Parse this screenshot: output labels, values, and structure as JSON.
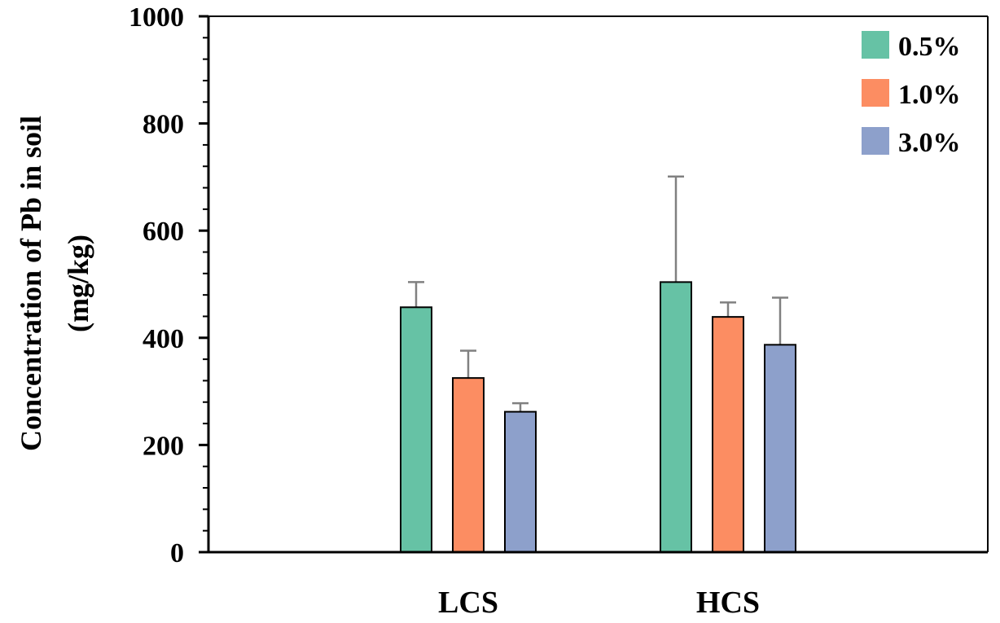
{
  "chart_data": {
    "type": "bar",
    "title": "",
    "xlabel": "",
    "ylabel": [
      "Concentration of Pb in soil",
      "(mg/kg)"
    ],
    "ylim": [
      0,
      1000
    ],
    "yticks": [
      "0",
      "200",
      "400",
      "600",
      "800",
      "1000"
    ],
    "ytick_values": [
      0,
      200,
      400,
      600,
      800,
      1000
    ],
    "minor_tick_step": 40,
    "categories": [
      "LCS",
      "HCS"
    ],
    "series": [
      {
        "name": "0.5%",
        "color": "#66c2a5",
        "values": [
          457,
          504
        ],
        "errors": [
          47,
          197
        ]
      },
      {
        "name": "1.0%",
        "color": "#fc8d62",
        "values": [
          325,
          439
        ],
        "errors": [
          51,
          27
        ]
      },
      {
        "name": "3.0%",
        "color": "#8da0cb",
        "values": [
          262,
          387
        ],
        "errors": [
          16,
          88
        ]
      }
    ],
    "legend_position": "top-right",
    "grid": false
  }
}
